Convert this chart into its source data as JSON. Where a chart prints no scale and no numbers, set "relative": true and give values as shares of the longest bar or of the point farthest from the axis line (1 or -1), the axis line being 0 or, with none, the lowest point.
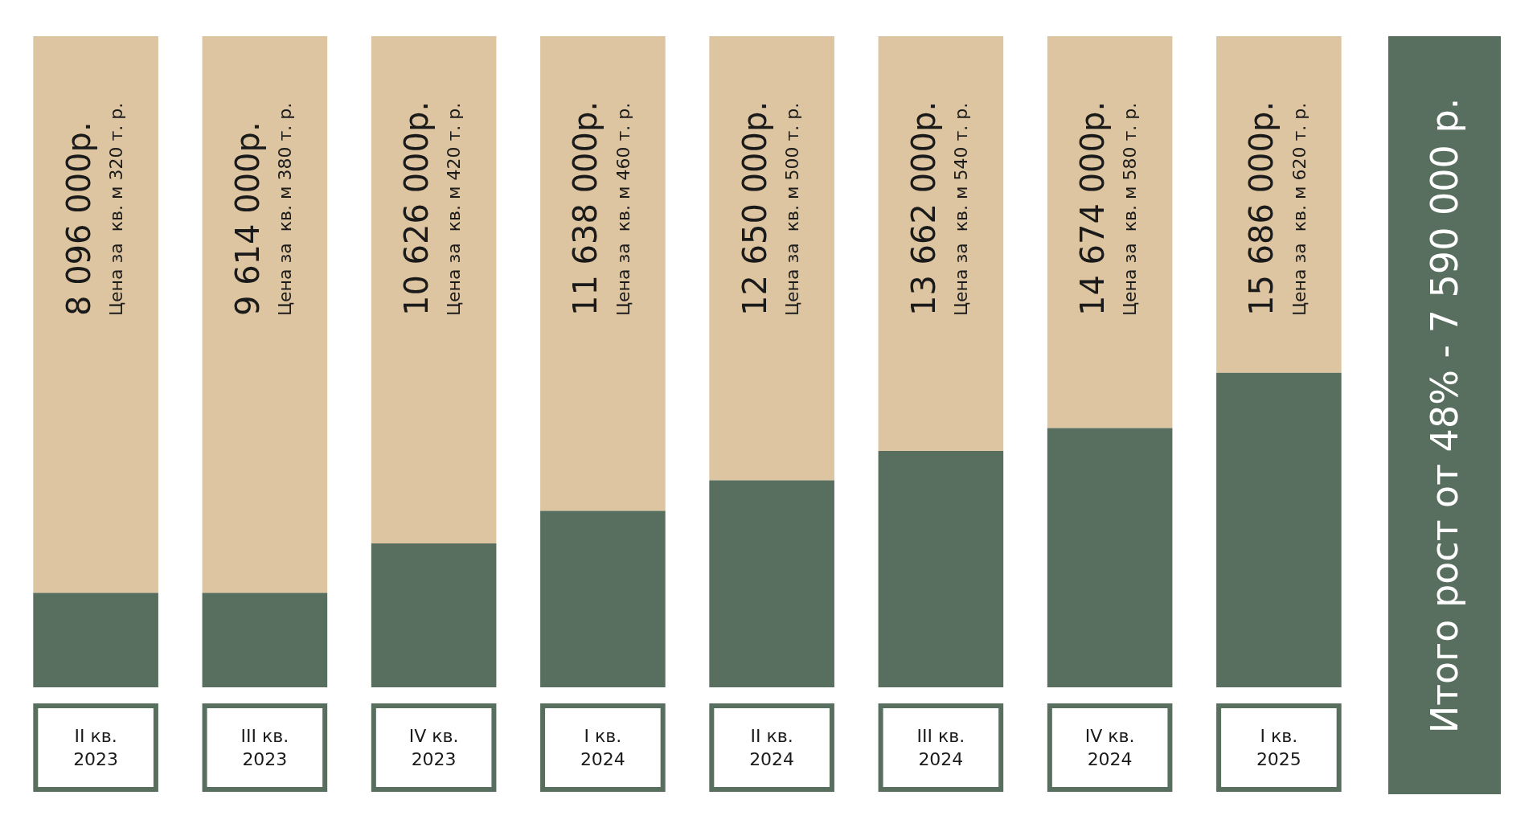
{
  "chart_data": {
    "type": "bar",
    "stacked": true,
    "relative": true,
    "categories": [
      "II кв.\n2023",
      "III кв.\n2023",
      "IV кв.\n2023",
      "I кв.\n2024",
      "II кв.\n2024",
      "III кв.\n2024",
      "IV кв.\n2024",
      "I кв.\n2025"
    ],
    "series": [
      {
        "color": "#586e5e",
        "values": [
          0.145,
          0.145,
          0.221,
          0.271,
          0.318,
          0.363,
          0.398,
          0.483
        ]
      },
      {
        "color": "#dcc5a0",
        "values": [
          0.855,
          0.855,
          0.779,
          0.729,
          0.682,
          0.637,
          0.602,
          0.517
        ]
      }
    ],
    "annotations": [
      "8 096 000р.\nЦена за  кв. м 320 т. р.",
      "9 614 000р.\nЦена за  кв. м 380 т. р.",
      "10 626 000р.\nЦена за  кв. м 420 т. р.",
      "11 638 000р.\nЦена за  кв. м 460 т. р.",
      "12 650 000р.\nЦена за  кв. м 500 т. р.",
      "13 662 000р.\nЦена за  кв. м 540 т. р.",
      "14 674 000р.\nЦена за  кв. м 580 т. р.",
      "15 686 000р.\nЦена за  кв. м 620 т. р.",
      "Итого рост от 48% - 7 590 000 р."
    ]
  }
}
